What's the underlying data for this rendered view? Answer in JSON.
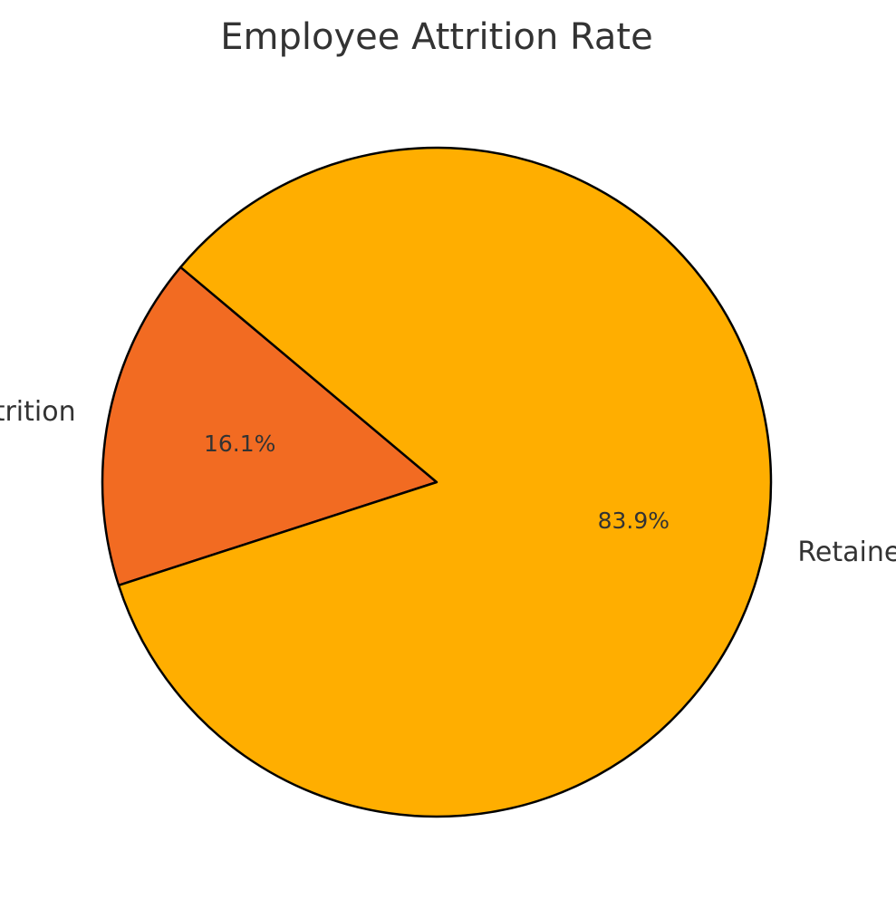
{
  "chart_data": {
    "type": "pie",
    "title": "Employee Attrition Rate",
    "slices": [
      {
        "label": "Attrition",
        "value": 16.1,
        "pct_label": "16.1%",
        "color": "#F26B22"
      },
      {
        "label": "Retained Employees",
        "value": 83.9,
        "pct_label": "83.9%",
        "color": "#FFAE00"
      }
    ],
    "start_angle_deg": 140,
    "direction": "counterclockwise",
    "edge_color": "#000000",
    "legend": "none"
  }
}
